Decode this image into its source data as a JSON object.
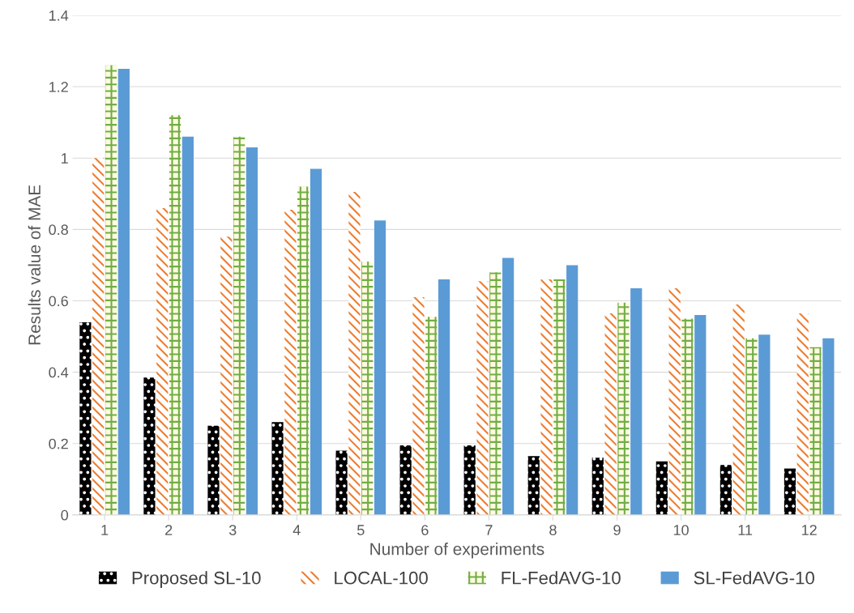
{
  "chart_data": {
    "type": "bar",
    "xlabel": "Number of experiments",
    "ylabel": "Results value of MAE",
    "categories": [
      "1",
      "2",
      "3",
      "4",
      "5",
      "6",
      "7",
      "8",
      "9",
      "10",
      "11",
      "12"
    ],
    "series": [
      {
        "name": "Proposed SL-10",
        "color": "#000000",
        "values": [
          0.54,
          0.385,
          0.25,
          0.26,
          0.18,
          0.195,
          0.195,
          0.165,
          0.16,
          0.15,
          0.14,
          0.13
        ]
      },
      {
        "name": "LOCAL-100",
        "color": "#ed7d31",
        "values": [
          1.0,
          0.86,
          0.78,
          0.855,
          0.905,
          0.61,
          0.655,
          0.66,
          0.565,
          0.635,
          0.59,
          0.565
        ]
      },
      {
        "name": "FL-FedAVG-10",
        "color": "#70ad47",
        "values": [
          1.26,
          1.12,
          1.06,
          0.92,
          0.71,
          0.555,
          0.68,
          0.66,
          0.595,
          0.55,
          0.495,
          0.47
        ]
      },
      {
        "name": "SL-FedAVG-10",
        "color": "#5b9bd5",
        "values": [
          1.25,
          1.06,
          1.03,
          0.97,
          0.825,
          0.66,
          0.72,
          0.7,
          0.635,
          0.56,
          0.505,
          0.495
        ]
      }
    ],
    "ylim": [
      0,
      1.4
    ],
    "yticks": [
      0,
      {
        "value": 0.2,
        "label": "0.2"
      },
      {
        "value": 0.4,
        "label": "0.4"
      },
      {
        "value": 0.6,
        "label": "0.6"
      },
      {
        "value": 0.8,
        "label": "0.8"
      },
      1,
      {
        "value": 1.2,
        "label": "1.2"
      },
      {
        "value": 1.4,
        "label": "1.4"
      }
    ],
    "grid": "y",
    "legend": "bottom"
  }
}
